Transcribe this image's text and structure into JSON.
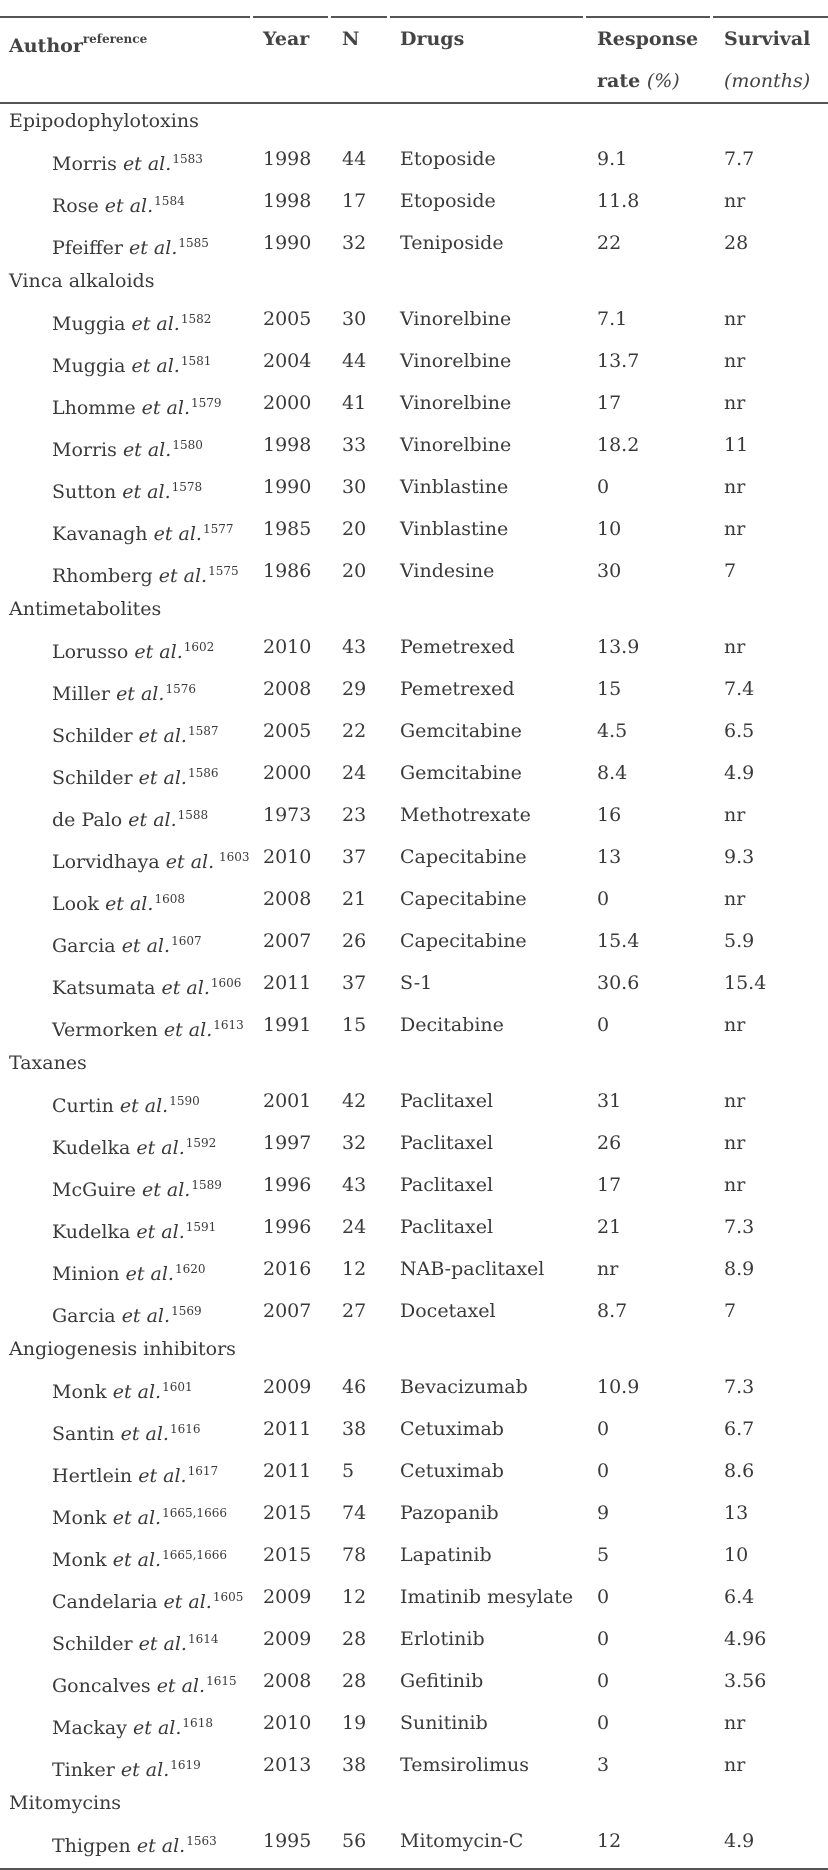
{
  "header": {
    "author": "Author",
    "author_sup": "reference",
    "year": "Year",
    "n": "N",
    "drugs": "Drugs",
    "response_line1": "Response",
    "response_line2": "rate",
    "response_unit": "(%)",
    "survival_line1": "Survival",
    "survival_unit": "(months)"
  },
  "groups": [
    {
      "name": "Epipodophylotoxins",
      "rows": [
        {
          "author": "Morris",
          "etal": "et al.",
          "ref": "1583",
          "year": "1998",
          "n": "44",
          "drug": "Etoposide",
          "response": "9.1",
          "survival": "7.7"
        },
        {
          "author": "Rose",
          "etal": "et al.",
          "ref": "1584",
          "year": "1998",
          "n": "17",
          "drug": "Etoposide",
          "response": "11.8",
          "survival": "nr"
        },
        {
          "author": "Pfeiffer",
          "etal": "et al.",
          "ref": "1585",
          "year": "1990",
          "n": "32",
          "drug": "Teniposide",
          "response": "22",
          "survival": "28"
        }
      ]
    },
    {
      "name": "Vinca alkaloids",
      "rows": [
        {
          "author": "Muggia",
          "etal": "et al.",
          "ref": "1582",
          "year": "2005",
          "n": "30",
          "drug": "Vinorelbine",
          "response": "7.1",
          "survival": "nr"
        },
        {
          "author": "Muggia",
          "etal": "et al.",
          "ref": "1581",
          "year": "2004",
          "n": "44",
          "drug": "Vinorelbine",
          "response": "13.7",
          "survival": "nr"
        },
        {
          "author": "Lhomme",
          "etal": "et al.",
          "ref": "1579",
          "year": "2000",
          "n": "41",
          "drug": "Vinorelbine",
          "response": "17",
          "survival": "nr"
        },
        {
          "author": "Morris",
          "etal": "et al.",
          "ref": "1580",
          "year": "1998",
          "n": "33",
          "drug": "Vinorelbine",
          "response": "18.2",
          "survival": "11"
        },
        {
          "author": "Sutton",
          "etal": "et al.",
          "ref": "1578",
          "year": "1990",
          "n": "30",
          "drug": "Vinblastine",
          "response": "0",
          "survival": "nr"
        },
        {
          "author": "Kavanagh",
          "etal": "et al.",
          "ref": "1577",
          "year": "1985",
          "n": "20",
          "drug": "Vinblastine",
          "response": "10",
          "survival": "nr"
        },
        {
          "author": "Rhomberg",
          "etal": "et al.",
          "ref": "1575",
          "year": "1986",
          "n": "20",
          "drug": "Vindesine",
          "response": "30",
          "survival": "7"
        }
      ]
    },
    {
      "name": "Antimetabolites",
      "rows": [
        {
          "author": "Lorusso",
          "etal": "et al.",
          "ref": "1602",
          "year": "2010",
          "n": "43",
          "drug": "Pemetrexed",
          "response": "13.9",
          "survival": "nr"
        },
        {
          "author": "Miller",
          "etal": "et al.",
          "ref": "1576",
          "year": "2008",
          "n": "29",
          "drug": "Pemetrexed",
          "response": "15",
          "survival": "7.4"
        },
        {
          "author": "Schilder",
          "etal": "et al.",
          "ref": "1587",
          "year": "2005",
          "n": "22",
          "drug": "Gemcitabine",
          "response": "4.5",
          "survival": "6.5"
        },
        {
          "author": "Schilder",
          "etal": "et al.",
          "ref": "1586",
          "year": "2000",
          "n": "24",
          "drug": "Gemcitabine",
          "response": "8.4",
          "survival": "4.9"
        },
        {
          "author": "de Palo",
          "etal": "et al.",
          "ref": "1588",
          "year": "1973",
          "n": "23",
          "drug": "Methotrexate",
          "response": "16",
          "survival": "nr"
        },
        {
          "author": "Lorvidhaya",
          "etal": "et al.",
          "ref": " 1603",
          "year": "2010",
          "n": "37",
          "drug": "Capecitabine",
          "response": "13",
          "survival": "9.3"
        },
        {
          "author": "Look",
          "etal": "et al.",
          "ref": "1608",
          "year": "2008",
          "n": "21",
          "drug": "Capecitabine",
          "response": "0",
          "survival": "nr"
        },
        {
          "author": "Garcia",
          "etal": "et al.",
          "ref": "1607",
          "year": "2007",
          "n": "26",
          "drug": "Capecitabine",
          "response": "15.4",
          "survival": "5.9"
        },
        {
          "author": "Katsumata",
          "etal": "et al.",
          "ref": "1606",
          "year": "2011",
          "n": "37",
          "drug": "S-1",
          "response": "30.6",
          "survival": "15.4"
        },
        {
          "author": "Vermorken",
          "etal": "et al.",
          "ref": "1613",
          "year": "1991",
          "n": "15",
          "drug": "Decitabine",
          "response": "0",
          "survival": "nr"
        }
      ]
    },
    {
      "name": "Taxanes",
      "rows": [
        {
          "author": "Curtin",
          "etal": "et al.",
          "ref": "1590",
          "year": "2001",
          "n": "42",
          "drug": "Paclitaxel",
          "response": "31",
          "survival": "nr"
        },
        {
          "author": "Kudelka",
          "etal": "et al.",
          "ref": "1592",
          "year": "1997",
          "n": "32",
          "drug": "Paclitaxel",
          "response": "26",
          "survival": "nr"
        },
        {
          "author": "McGuire",
          "etal": "et al.",
          "ref": "1589",
          "year": "1996",
          "n": "43",
          "drug": "Paclitaxel",
          "response": "17",
          "survival": "nr"
        },
        {
          "author": "Kudelka",
          "etal": "et al.",
          "ref": "1591",
          "year": "1996",
          "n": "24",
          "drug": "Paclitaxel",
          "response": "21",
          "survival": "7.3"
        },
        {
          "author": "Minion",
          "etal": "et al.",
          "ref": "1620",
          "year": "2016",
          "n": "12",
          "drug": "NAB-paclitaxel",
          "response": "nr",
          "survival": "8.9"
        },
        {
          "author": "Garcia",
          "etal": "et al.",
          "ref": "1569",
          "year": "2007",
          "n": "27",
          "drug": "Docetaxel",
          "response": "8.7",
          "survival": "7"
        }
      ]
    },
    {
      "name": "Angiogenesis inhibitors",
      "rows": [
        {
          "author": "Monk",
          "etal": "et al.",
          "ref": "1601",
          "year": "2009",
          "n": "46",
          "drug": "Bevacizumab",
          "response": "10.9",
          "survival": "7.3"
        },
        {
          "author": "Santin",
          "etal": "et al.",
          "ref": "1616",
          "year": "2011",
          "n": "38",
          "drug": "Cetuximab",
          "response": "0",
          "survival": "6.7"
        },
        {
          "author": "Hertlein",
          "etal": "et al.",
          "ref": "1617",
          "year": "2011",
          "n": "5",
          "drug": "Cetuximab",
          "response": "0",
          "survival": "8.6"
        },
        {
          "author": "Monk",
          "etal": "et al.",
          "ref": "1665,1666",
          "year": "2015",
          "n": "74",
          "drug": "Pazopanib",
          "response": "9",
          "survival": "13"
        },
        {
          "author": "Monk",
          "etal": "et al.",
          "ref": "1665,1666",
          "year": "2015",
          "n": "78",
          "drug": "Lapatinib",
          "response": "5",
          "survival": "10"
        },
        {
          "author": "Candelaria",
          "etal": "et al.",
          "ref": "1605",
          "year": "2009",
          "n": "12",
          "drug": "Imatinib mesylate",
          "response": "0",
          "survival": "6.4"
        },
        {
          "author": "Schilder",
          "etal": "et al.",
          "ref": "1614",
          "year": "2009",
          "n": "28",
          "drug": "Erlotinib",
          "response": "0",
          "survival": "4.96"
        },
        {
          "author": "Goncalves",
          "etal": "et al.",
          "ref": "1615",
          "year": "2008",
          "n": "28",
          "drug": "Gefitinib",
          "response": "0",
          "survival": "3.56"
        },
        {
          "author": "Mackay",
          "etal": "et al.",
          "ref": "1618",
          "year": "2010",
          "n": "19",
          "drug": "Sunitinib",
          "response": "0",
          "survival": "nr"
        },
        {
          "author": "Tinker",
          "etal": "et al.",
          "ref": "1619",
          "year": "2013",
          "n": "38",
          "drug": "Temsirolimus",
          "response": "3",
          "survival": "nr"
        }
      ]
    },
    {
      "name": "Mitomycins",
      "rows": [
        {
          "author": "Thigpen",
          "etal": "et al.",
          "ref": "1563",
          "year": "1995",
          "n": "56",
          "drug": "Mitomycin-C",
          "response": "12",
          "survival": "4.9"
        }
      ]
    }
  ]
}
